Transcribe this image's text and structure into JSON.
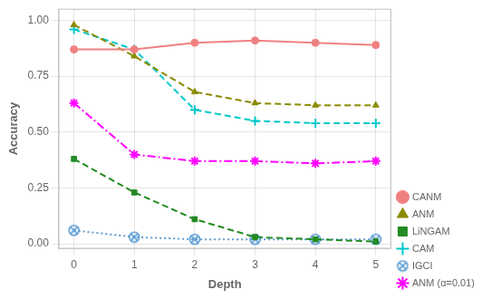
{
  "chart_data": {
    "type": "line",
    "xlabel": "Depth",
    "ylabel": "Accuracy",
    "x": [
      0,
      1,
      2,
      3,
      4,
      5
    ],
    "series": [
      {
        "name": "CANM",
        "color": "#f08080",
        "marker": "circle",
        "line_style": "solid",
        "values": [
          0.87,
          0.87,
          0.9,
          0.91,
          0.9,
          0.89
        ]
      },
      {
        "name": "ANM",
        "color": "#8b8b00",
        "marker": "triangle",
        "line_style": "dashed",
        "values": [
          0.98,
          0.84,
          0.68,
          0.63,
          0.62,
          0.62
        ]
      },
      {
        "name": "LiNGAM",
        "color": "#228b22",
        "marker": "square",
        "line_style": "dashed",
        "values": [
          0.38,
          0.23,
          0.11,
          0.03,
          0.02,
          0.01
        ]
      },
      {
        "name": "CAM",
        "color": "#00c8c8",
        "marker": "plus",
        "line_style": "dashed",
        "values": [
          0.96,
          0.87,
          0.6,
          0.55,
          0.54,
          0.54
        ]
      },
      {
        "name": "IGCI",
        "color": "#5b9bd5",
        "marker": "circled_x",
        "line_style": "dotted",
        "values": [
          0.06,
          0.03,
          0.02,
          0.02,
          0.02,
          0.02
        ]
      },
      {
        "name": "ANM (α=0.01)",
        "color": "#ff00ff",
        "marker": "star",
        "line_style": "dashdot",
        "values": [
          0.63,
          0.4,
          0.37,
          0.37,
          0.36,
          0.37
        ]
      }
    ],
    "xlim": [
      -0.25,
      5.25
    ],
    "ylim": [
      -0.02,
      1.05
    ],
    "xticks": [
      0,
      1,
      2,
      3,
      4,
      5
    ],
    "yticks": [
      {
        "value": 0,
        "label": "0.00"
      },
      0.25,
      {
        "value": 0.5,
        "label": "0.50"
      },
      0.75,
      {
        "value": 1,
        "label": "1.00"
      }
    ],
    "grid": true,
    "legend": "lower right"
  }
}
